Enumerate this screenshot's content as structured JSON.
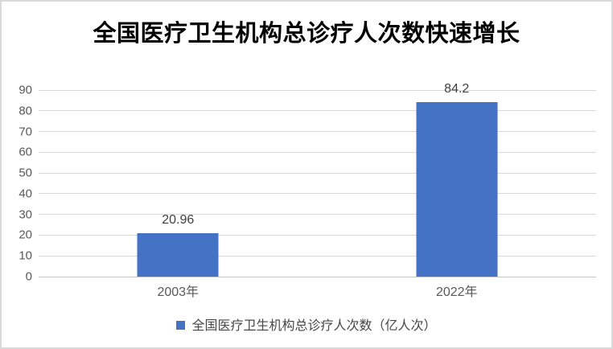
{
  "title": "全国医疗卫生机构总诊疗人次数快速增长",
  "colors": {
    "bar": "#4472C4",
    "gridline": "#D9D9D9",
    "axis_label": "#595959",
    "data_label": "#404040",
    "frame_border": "#D9D9D9",
    "title": "#000000"
  },
  "legend": {
    "label": "全国医疗卫生机构总诊疗人次数（亿人次）",
    "marker": "blue-square"
  },
  "chart_data": {
    "type": "bar",
    "title": "全国医疗卫生机构总诊疗人次数快速增长",
    "categories": [
      "2003年",
      "2022年"
    ],
    "values": [
      20.96,
      84.2
    ],
    "data_labels": [
      "20.96",
      "84.2"
    ],
    "series_name": "全国医疗卫生机构总诊疗人次数（亿人次）",
    "xlabel": "",
    "ylabel": "",
    "ylim": [
      0,
      90
    ],
    "yticks": [
      0,
      10,
      20,
      30,
      40,
      50,
      60,
      70,
      80,
      90
    ],
    "grid": true,
    "legend_position": "bottom",
    "bar_color": "#4472C4"
  }
}
